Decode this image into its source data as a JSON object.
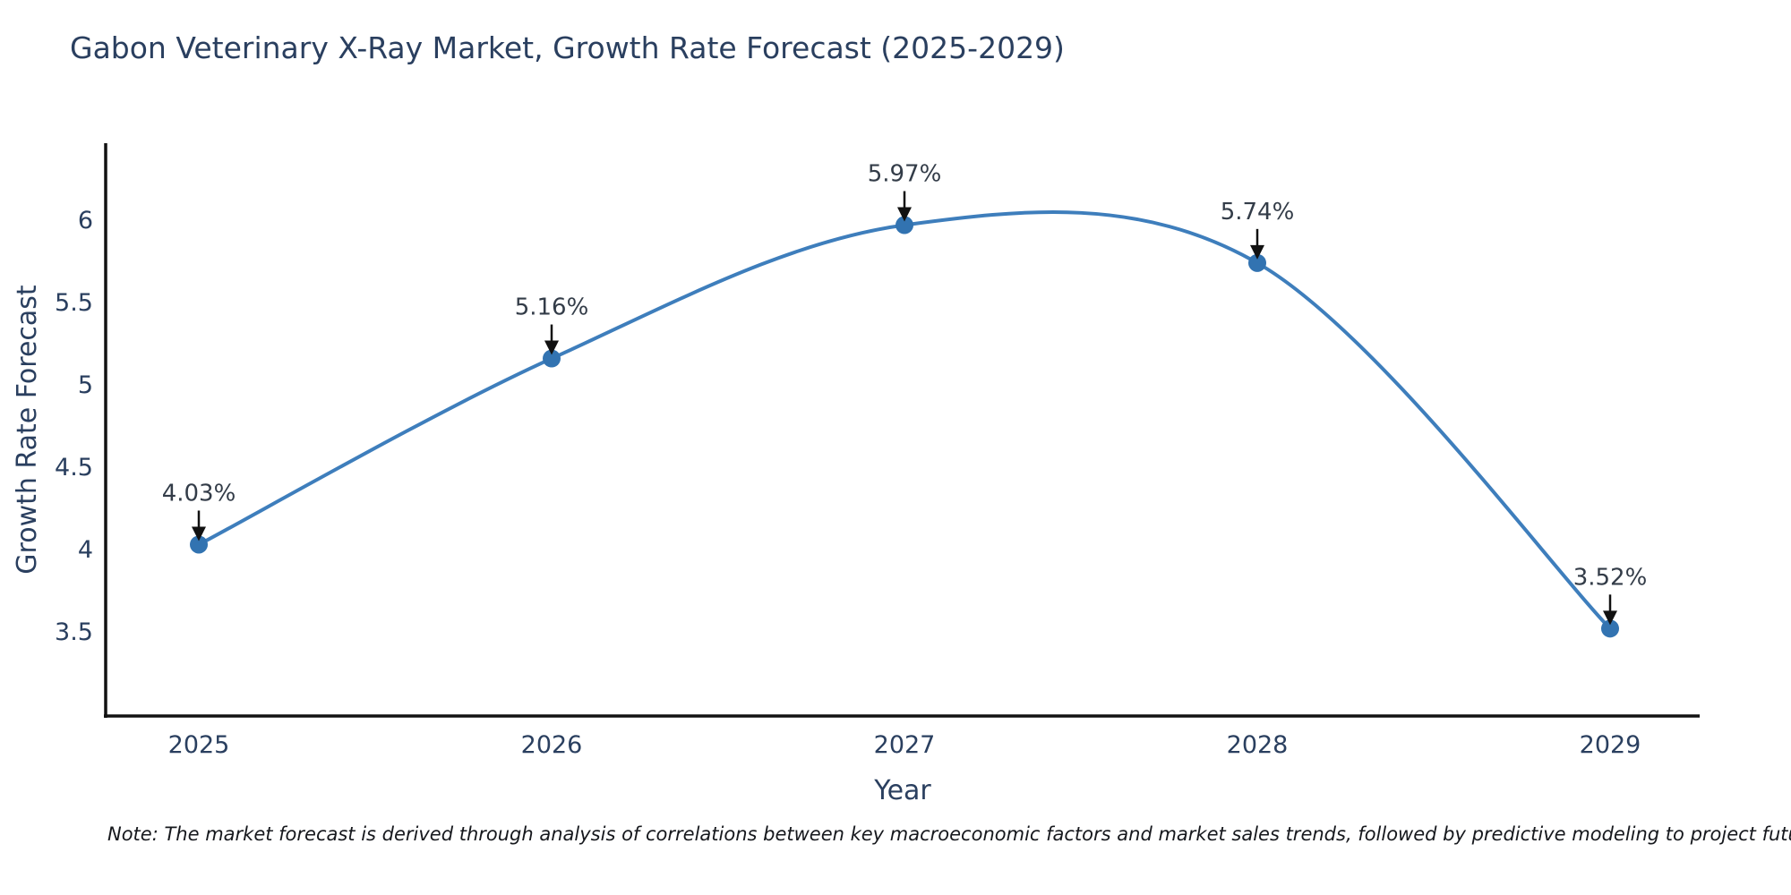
{
  "title": "Gabon Veterinary X-Ray Market, Growth Rate Forecast (2025-2029)",
  "note": "Note: The market forecast is derived through analysis of correlations between key macroeconomic factors and market sales trends, followed by predictive modeling to project future sales",
  "chart_data": {
    "type": "line",
    "title": "Gabon Veterinary X-Ray Market, Growth Rate Forecast (2025-2029)",
    "line_shape": "spline",
    "grid": false,
    "legend": "none",
    "x": [
      2025,
      2026,
      2027,
      2028,
      2029
    ],
    "series": [
      {
        "name": "Growth Rate Forecast",
        "values": [
          4.03,
          5.16,
          5.97,
          5.74,
          3.52
        ]
      }
    ],
    "point_labels": [
      "4.03%",
      "5.16%",
      "5.97%",
      "5.74%",
      "3.52%"
    ],
    "xlabel": "Year",
    "ylabel": "Growth Rate Forecast",
    "xtick_labels": [
      "2025",
      "2026",
      "2027",
      "2028",
      "2029"
    ],
    "yticks": [
      3.5,
      4,
      4.5,
      5,
      5.5,
      6
    ],
    "ytick_labels": [
      "3.5",
      "4",
      "4.5",
      "5",
      "5.5",
      "6"
    ],
    "ylim": [
      2.98,
      6.48
    ],
    "colors": {
      "line": "#3e7ebc",
      "marker": "#3273b1",
      "axis": "#111111",
      "arrow": "#111111",
      "text": "#2a3f5f",
      "annotation_text": "#333c48"
    }
  }
}
